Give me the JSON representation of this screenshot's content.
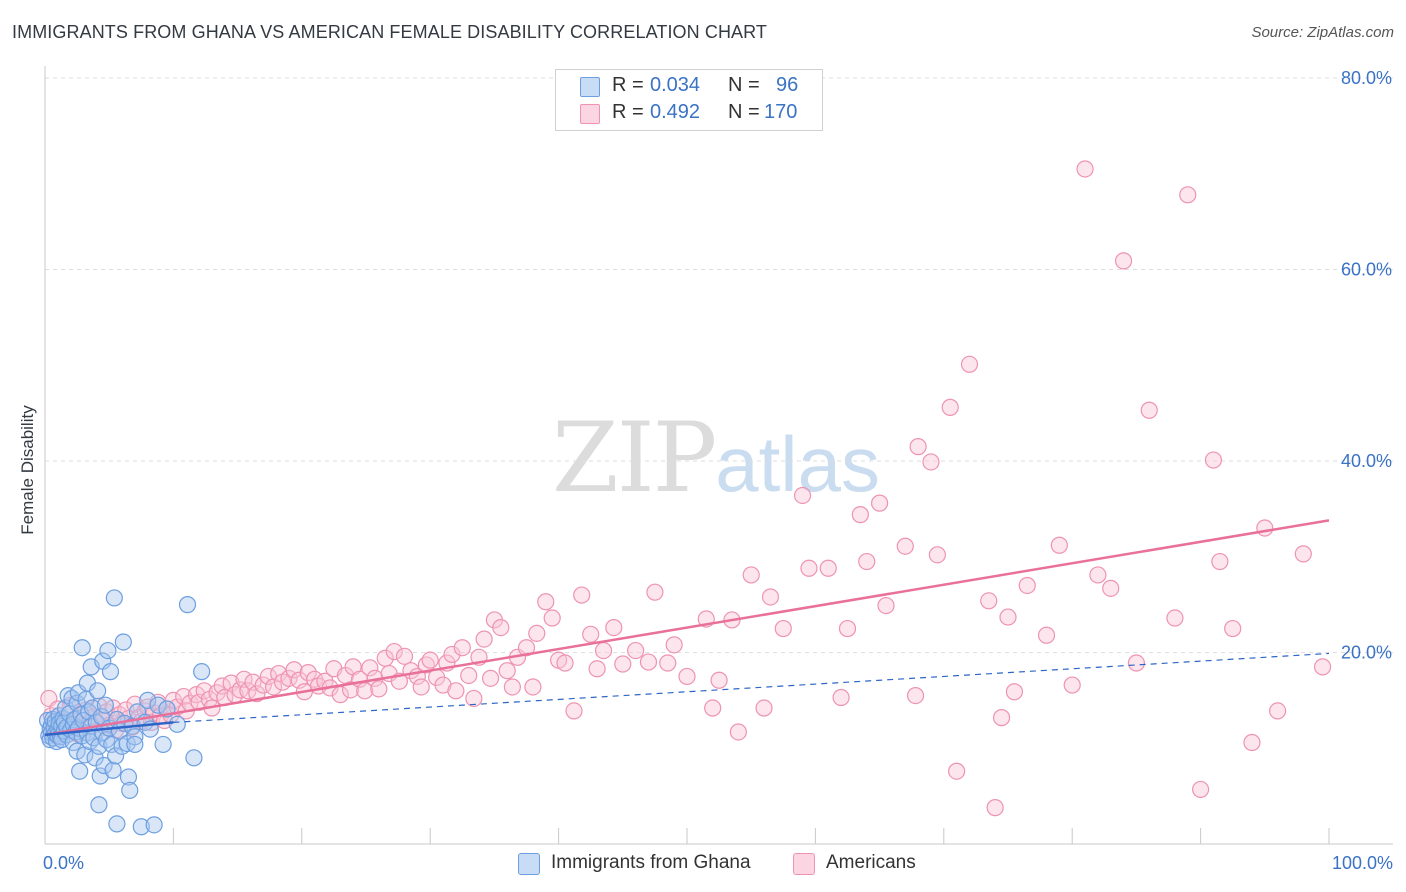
{
  "header": {
    "title": "IMMIGRANTS FROM GHANA VS AMERICAN FEMALE DISABILITY CORRELATION CHART",
    "source": "Source: ZipAtlas.com"
  },
  "watermark": {
    "zip": "ZIP",
    "atlas": "atlas"
  },
  "stats": [
    {
      "r_label": "R =",
      "r_value": "0.034",
      "n_label": "N =",
      "n_value": "96",
      "color": "#a9c8f0",
      "border": "#6d9fe0"
    },
    {
      "r_label": "R =",
      "r_value": "0.492",
      "n_label": "N =",
      "n_value": "170",
      "color": "#f8c6d6",
      "border": "#ee93b1"
    }
  ],
  "legend": [
    {
      "label": "Immigrants from Ghana",
      "color": "#a9c8f0",
      "border": "#6d9fe0"
    },
    {
      "label": "Americans",
      "color": "#f8c6d6",
      "border": "#ee93b1"
    }
  ],
  "chart_data": {
    "type": "scatter",
    "title": "IMMIGRANTS FROM GHANA VS AMERICAN FEMALE DISABILITY CORRELATION CHART",
    "xlabel": "",
    "ylabel": "Female Disability",
    "xlim": [
      0,
      100
    ],
    "ylim": [
      0,
      80
    ],
    "x_tick_labels": [
      "0.0%",
      "100.0%"
    ],
    "y_tick_labels": [
      "20.0%",
      "40.0%",
      "60.0%",
      "80.0%"
    ],
    "y_ticks": [
      20,
      40,
      60,
      80
    ],
    "grid": true,
    "colors": {
      "ghana": "#6d9fe0",
      "americans": "#ee93b1",
      "ghana_line": "#2d66c8",
      "americans_line": "#e8709a",
      "axis_label": "#3a72c6"
    },
    "series": [
      {
        "name": "Immigrants from Ghana",
        "trend": {
          "solid": [
            [
              0,
              11.4
            ],
            [
              10,
              12.7
            ]
          ],
          "dashed": [
            [
              10,
              12.7
            ],
            [
              100,
              19.9
            ]
          ]
        },
        "points": [
          [
            0.2,
            12.9
          ],
          [
            0.3,
            11.3
          ],
          [
            0.4,
            12.0
          ],
          [
            0.4,
            10.9
          ],
          [
            0.5,
            12.4
          ],
          [
            0.5,
            11.6
          ],
          [
            0.6,
            13.0
          ],
          [
            0.6,
            11.1
          ],
          [
            0.7,
            12.2
          ],
          [
            0.8,
            11.5
          ],
          [
            0.8,
            12.8
          ],
          [
            0.9,
            10.7
          ],
          [
            1.0,
            12.0
          ],
          [
            1.0,
            11.3
          ],
          [
            1.1,
            13.4
          ],
          [
            1.1,
            12.6
          ],
          [
            1.2,
            11.2
          ],
          [
            1.3,
            12.3
          ],
          [
            1.3,
            10.9
          ],
          [
            1.4,
            13.1
          ],
          [
            1.5,
            11.8
          ],
          [
            1.5,
            12.7
          ],
          [
            1.6,
            14.2
          ],
          [
            1.7,
            11.4
          ],
          [
            1.7,
            12.2
          ],
          [
            1.8,
            15.5
          ],
          [
            1.9,
            13.6
          ],
          [
            2.0,
            11.9
          ],
          [
            2.1,
            15.2
          ],
          [
            2.2,
            12.5
          ],
          [
            2.2,
            10.6
          ],
          [
            2.3,
            13.0
          ],
          [
            2.4,
            11.7
          ],
          [
            2.5,
            14.7
          ],
          [
            2.5,
            9.7
          ],
          [
            2.6,
            12.1
          ],
          [
            2.6,
            15.8
          ],
          [
            2.7,
            7.6
          ],
          [
            2.8,
            13.5
          ],
          [
            2.9,
            11.3
          ],
          [
            2.9,
            20.5
          ],
          [
            3.0,
            12.9
          ],
          [
            3.1,
            9.3
          ],
          [
            3.2,
            15.1
          ],
          [
            3.3,
            11.6
          ],
          [
            3.3,
            16.8
          ],
          [
            3.4,
            13.8
          ],
          [
            3.5,
            10.7
          ],
          [
            3.6,
            12.3
          ],
          [
            3.6,
            18.5
          ],
          [
            3.7,
            14.2
          ],
          [
            3.8,
            11.1
          ],
          [
            3.9,
            9.0
          ],
          [
            4.0,
            12.7
          ],
          [
            4.1,
            16.0
          ],
          [
            4.2,
            10.2
          ],
          [
            4.3,
            7.1
          ],
          [
            4.4,
            13.3
          ],
          [
            4.5,
            11.6
          ],
          [
            4.5,
            19.1
          ],
          [
            4.6,
            8.2
          ],
          [
            4.7,
            14.5
          ],
          [
            4.8,
            10.9
          ],
          [
            4.9,
            20.2
          ],
          [
            5.0,
            12.1
          ],
          [
            5.1,
            18.0
          ],
          [
            5.2,
            10.4
          ],
          [
            5.3,
            7.7
          ],
          [
            5.4,
            25.7
          ],
          [
            5.5,
            9.2
          ],
          [
            5.6,
            13.0
          ],
          [
            5.6,
            2.1
          ],
          [
            5.8,
            11.8
          ],
          [
            6.0,
            10.2
          ],
          [
            6.1,
            21.1
          ],
          [
            6.2,
            12.6
          ],
          [
            6.4,
            10.5
          ],
          [
            6.5,
            7.0
          ],
          [
            6.6,
            5.6
          ],
          [
            6.8,
            12.3
          ],
          [
            7.0,
            11.2
          ],
          [
            7.2,
            13.8
          ],
          [
            7.5,
            1.8
          ],
          [
            7.8,
            12.7
          ],
          [
            8.0,
            15.0
          ],
          [
            8.2,
            12.0
          ],
          [
            8.5,
            2.0
          ],
          [
            8.8,
            14.5
          ],
          [
            7.0,
            10.4
          ],
          [
            4.2,
            4.1
          ],
          [
            9.2,
            10.4
          ],
          [
            9.5,
            14.1
          ],
          [
            10.3,
            12.5
          ],
          [
            11.1,
            25.0
          ],
          [
            11.6,
            9.0
          ],
          [
            12.2,
            18.0
          ]
        ]
      },
      {
        "name": "Americans",
        "trend": {
          "solid": [
            [
              0,
              11.4
            ],
            [
              100,
              33.8
            ]
          ]
        },
        "points": [
          [
            0.3,
            15.2
          ],
          [
            0.5,
            13.4
          ],
          [
            0.8,
            12.6
          ],
          [
            1.0,
            14.1
          ],
          [
            1.2,
            11.9
          ],
          [
            1.5,
            13.0
          ],
          [
            1.8,
            12.3
          ],
          [
            2.0,
            14.5
          ],
          [
            2.3,
            12.8
          ],
          [
            2.5,
            11.5
          ],
          [
            2.8,
            13.6
          ],
          [
            3.0,
            12.1
          ],
          [
            3.2,
            14.0
          ],
          [
            3.5,
            12.7
          ],
          [
            3.8,
            13.3
          ],
          [
            4.0,
            11.8
          ],
          [
            4.2,
            14.4
          ],
          [
            4.5,
            12.9
          ],
          [
            4.8,
            13.8
          ],
          [
            5.0,
            12.4
          ],
          [
            5.3,
            14.2
          ],
          [
            5.5,
            11.9
          ],
          [
            5.8,
            13.5
          ],
          [
            6.0,
            12.6
          ],
          [
            6.3,
            14.0
          ],
          [
            6.5,
            13.1
          ],
          [
            6.8,
            12.2
          ],
          [
            7.0,
            14.6
          ],
          [
            7.3,
            13.2
          ],
          [
            7.5,
            12.8
          ],
          [
            7.8,
            13.9
          ],
          [
            8.0,
            14.3
          ],
          [
            8.3,
            12.7
          ],
          [
            8.5,
            13.7
          ],
          [
            8.8,
            14.8
          ],
          [
            9.0,
            13.4
          ],
          [
            9.3,
            12.9
          ],
          [
            9.5,
            14.1
          ],
          [
            9.8,
            13.5
          ],
          [
            10.0,
            15.0
          ],
          [
            10.3,
            14.3
          ],
          [
            10.8,
            15.4
          ],
          [
            11.0,
            13.9
          ],
          [
            11.3,
            14.7
          ],
          [
            11.8,
            15.6
          ],
          [
            12.0,
            14.8
          ],
          [
            12.4,
            16.0
          ],
          [
            12.8,
            15.1
          ],
          [
            13.0,
            14.2
          ],
          [
            13.4,
            15.8
          ],
          [
            13.8,
            16.5
          ],
          [
            14.0,
            15.3
          ],
          [
            14.5,
            16.8
          ],
          [
            14.8,
            15.6
          ],
          [
            15.2,
            16.1
          ],
          [
            15.5,
            17.2
          ],
          [
            15.8,
            16.0
          ],
          [
            16.2,
            16.9
          ],
          [
            16.5,
            15.7
          ],
          [
            17.0,
            16.6
          ],
          [
            17.4,
            17.5
          ],
          [
            17.8,
            16.4
          ],
          [
            18.2,
            17.8
          ],
          [
            18.5,
            16.9
          ],
          [
            19.0,
            17.3
          ],
          [
            19.4,
            18.2
          ],
          [
            19.8,
            17.1
          ],
          [
            20.2,
            15.9
          ],
          [
            20.5,
            17.9
          ],
          [
            21.0,
            17.2
          ],
          [
            21.3,
            16.5
          ],
          [
            21.8,
            17.0
          ],
          [
            22.2,
            16.3
          ],
          [
            22.5,
            18.3
          ],
          [
            23.0,
            15.6
          ],
          [
            23.4,
            17.6
          ],
          [
            23.8,
            16.1
          ],
          [
            24.0,
            18.5
          ],
          [
            24.5,
            17.2
          ],
          [
            24.9,
            16.0
          ],
          [
            25.3,
            18.4
          ],
          [
            25.7,
            17.3
          ],
          [
            26.0,
            16.2
          ],
          [
            26.5,
            19.4
          ],
          [
            26.8,
            17.8
          ],
          [
            27.2,
            20.1
          ],
          [
            27.6,
            17.0
          ],
          [
            28.0,
            19.6
          ],
          [
            28.5,
            18.1
          ],
          [
            29.0,
            17.5
          ],
          [
            29.3,
            16.4
          ],
          [
            29.7,
            18.7
          ],
          [
            30.0,
            19.2
          ],
          [
            30.5,
            17.4
          ],
          [
            31.0,
            16.6
          ],
          [
            31.3,
            18.9
          ],
          [
            31.7,
            19.8
          ],
          [
            32.0,
            16.0
          ],
          [
            32.5,
            20.5
          ],
          [
            33.0,
            17.6
          ],
          [
            33.4,
            15.2
          ],
          [
            33.8,
            19.5
          ],
          [
            34.2,
            21.4
          ],
          [
            34.7,
            17.3
          ],
          [
            35.0,
            23.4
          ],
          [
            35.5,
            22.6
          ],
          [
            36.0,
            18.1
          ],
          [
            36.4,
            16.4
          ],
          [
            36.8,
            19.5
          ],
          [
            37.5,
            20.5
          ],
          [
            38.0,
            16.4
          ],
          [
            38.3,
            22.0
          ],
          [
            39.0,
            25.3
          ],
          [
            39.5,
            23.6
          ],
          [
            40.0,
            19.2
          ],
          [
            40.5,
            18.9
          ],
          [
            41.2,
            13.9
          ],
          [
            41.8,
            26.0
          ],
          [
            42.5,
            21.9
          ],
          [
            43.0,
            18.3
          ],
          [
            43.5,
            20.2
          ],
          [
            44.3,
            22.6
          ],
          [
            45.0,
            18.8
          ],
          [
            46.0,
            20.2
          ],
          [
            47.0,
            19.0
          ],
          [
            47.5,
            26.3
          ],
          [
            48.5,
            18.9
          ],
          [
            49.0,
            20.8
          ],
          [
            50.0,
            17.5
          ],
          [
            51.5,
            23.5
          ],
          [
            52.0,
            14.2
          ],
          [
            52.5,
            17.1
          ],
          [
            53.5,
            23.4
          ],
          [
            54.0,
            11.7
          ],
          [
            55.0,
            28.1
          ],
          [
            56.0,
            14.2
          ],
          [
            56.5,
            25.8
          ],
          [
            57.5,
            22.5
          ],
          [
            59.0,
            36.4
          ],
          [
            59.5,
            28.8
          ],
          [
            61.0,
            28.8
          ],
          [
            62.0,
            15.3
          ],
          [
            62.5,
            22.5
          ],
          [
            63.5,
            34.4
          ],
          [
            64.0,
            29.5
          ],
          [
            65.0,
            35.6
          ],
          [
            65.5,
            24.9
          ],
          [
            67.0,
            31.1
          ],
          [
            67.8,
            15.5
          ],
          [
            68.0,
            41.5
          ],
          [
            69.0,
            39.9
          ],
          [
            69.5,
            30.2
          ],
          [
            70.5,
            45.6
          ],
          [
            71.0,
            7.6
          ],
          [
            72.0,
            50.1
          ],
          [
            73.5,
            25.4
          ],
          [
            74.0,
            3.8
          ],
          [
            74.5,
            13.2
          ],
          [
            75.0,
            23.7
          ],
          [
            75.5,
            15.9
          ],
          [
            76.5,
            27.0
          ],
          [
            78.0,
            21.8
          ],
          [
            79.0,
            31.2
          ],
          [
            80.0,
            16.6
          ],
          [
            81.0,
            70.5
          ],
          [
            82.0,
            28.1
          ],
          [
            83.0,
            26.7
          ],
          [
            84.0,
            60.9
          ],
          [
            85.0,
            18.9
          ],
          [
            86.0,
            45.3
          ],
          [
            88.0,
            23.6
          ],
          [
            89.0,
            67.8
          ],
          [
            90.0,
            5.7
          ],
          [
            91.0,
            40.1
          ],
          [
            91.5,
            29.5
          ],
          [
            92.5,
            22.5
          ],
          [
            94.0,
            10.6
          ],
          [
            95.0,
            33.0
          ],
          [
            96.0,
            13.9
          ],
          [
            98.0,
            30.3
          ],
          [
            99.5,
            18.5
          ]
        ]
      }
    ]
  }
}
